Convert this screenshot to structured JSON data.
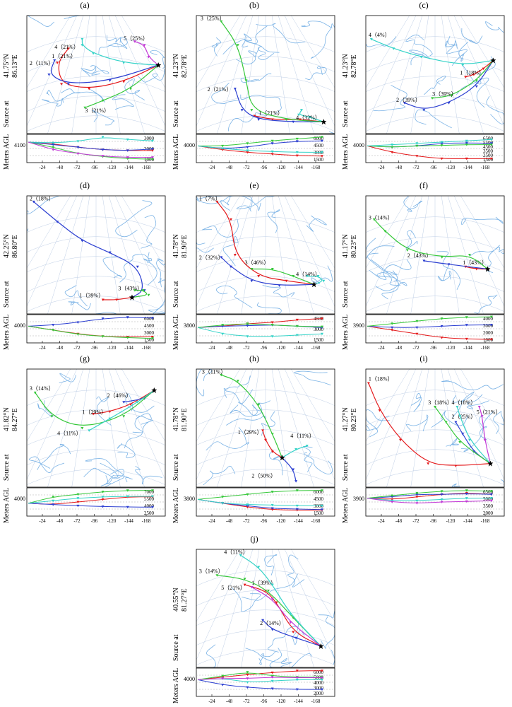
{
  "figure": {
    "side_label_source": "Source at",
    "side_label_agl": "Meters AGL",
    "x_ticks": [
      "-24",
      "-48",
      "-72",
      "-96",
      "-120",
      "-144",
      "-168"
    ],
    "colors": {
      "1": "#e41a1c",
      "2": "#2c3fd1",
      "3": "#36c83a",
      "4": "#35d3c8",
      "5": "#c33ad6",
      "map_line": "#7bb3e6",
      "grid": "#bfcfe6"
    }
  },
  "chart_data": [
    {
      "type": "line",
      "panel": "(a)",
      "lat": "41.75°N",
      "lon": "86.13°E",
      "height_base": "4100",
      "height_ticks": [
        "3000",
        "2000",
        "1000"
      ],
      "clusters": [
        {
          "id": "1",
          "label": "1（21%）",
          "share": 21
        },
        {
          "id": "2",
          "label": "2（11%）",
          "share": 11
        },
        {
          "id": "3",
          "label": "3（21%）",
          "share": 21
        },
        {
          "id": "4",
          "label": "4（21%）",
          "share": 21
        },
        {
          "id": "5",
          "label": "5（25%）",
          "share": 25
        }
      ]
    },
    {
      "type": "line",
      "panel": "(b)",
      "lat": "41.23°N",
      "lon": "82.78°E",
      "height_base": "4000",
      "height_ticks": [
        "6000",
        "4500",
        "3000",
        "1500"
      ],
      "clusters": [
        {
          "id": "1",
          "label": "1（21%）",
          "share": 21
        },
        {
          "id": "2",
          "label": "2（21%）",
          "share": 21
        },
        {
          "id": "3",
          "label": "3（25%）",
          "share": 25
        },
        {
          "id": "4",
          "label": "4（32%）",
          "share": 32
        }
      ]
    },
    {
      "type": "line",
      "panel": "(c)",
      "lat": "41.23°N",
      "lon": "82.78°E",
      "height_base": "4000",
      "height_ticks": [
        "6500",
        "5500",
        "4500",
        "3500",
        "2500",
        "1500"
      ],
      "clusters": [
        {
          "id": "1",
          "label": "1（18%）",
          "share": 18
        },
        {
          "id": "2",
          "label": "2（39%）",
          "share": 39
        },
        {
          "id": "3",
          "label": "3（39%）",
          "share": 39
        },
        {
          "id": "4",
          "label": "4（4%）",
          "share": 4
        }
      ]
    },
    {
      "type": "line",
      "panel": "(d)",
      "lat": "42.25°N",
      "lon": "86.80°E",
      "height_base": "4000",
      "height_ticks": [
        "6000",
        "4500",
        "3000",
        "1500"
      ],
      "clusters": [
        {
          "id": "1",
          "label": "1（39%）",
          "share": 39
        },
        {
          "id": "2",
          "label": "2（18%）",
          "share": 18
        },
        {
          "id": "3",
          "label": "3（43%）",
          "share": 43
        }
      ]
    },
    {
      "type": "line",
      "panel": "(e)",
      "lat": "41.78°N",
      "lon": "81.90°E",
      "height_base": "3800",
      "height_ticks": [
        "4500",
        "3000",
        "1500"
      ],
      "clusters": [
        {
          "id": "1",
          "label": "1（7%）",
          "share": 7
        },
        {
          "id": "2",
          "label": "2（32%）",
          "share": 32
        },
        {
          "id": "3",
          "label": "3（46%）",
          "share": 46
        },
        {
          "id": "4",
          "label": "4（14%）",
          "share": 14
        }
      ]
    },
    {
      "type": "line",
      "panel": "(f)",
      "lat": "41.17°N",
      "lon": "80.23°E",
      "height_base": "3900",
      "height_ticks": [
        "4000",
        "3000",
        "2000",
        "1000"
      ],
      "clusters": [
        {
          "id": "1",
          "label": "1（43%）",
          "share": 43
        },
        {
          "id": "2",
          "label": "2（43%）",
          "share": 43
        },
        {
          "id": "3",
          "label": "3（14%）",
          "share": 14
        }
      ]
    },
    {
      "type": "line",
      "panel": "(g)",
      "lat": "41.82°N",
      "lon": "84.27°E",
      "height_base": "4000",
      "height_ticks": [
        "7000",
        "5500",
        "4000",
        "2500"
      ],
      "clusters": [
        {
          "id": "1",
          "label": "1（29%）",
          "share": 29
        },
        {
          "id": "2",
          "label": "2（46%）",
          "share": 46
        },
        {
          "id": "3",
          "label": "3（14%）",
          "share": 14
        },
        {
          "id": "4",
          "label": "4（11%）",
          "share": 11
        }
      ]
    },
    {
      "type": "line",
      "panel": "(h)",
      "lat": "41.78°N",
      "lon": "81.90°E",
      "height_base": "3800",
      "height_ticks": [
        "6000",
        "4500",
        "3000",
        "1500"
      ],
      "clusters": [
        {
          "id": "1",
          "label": "1（29%）",
          "share": 29
        },
        {
          "id": "2",
          "label": "2（50%）",
          "share": 50
        },
        {
          "id": "3",
          "label": "3（11%）",
          "share": 11
        },
        {
          "id": "4",
          "label": "4（11%）",
          "share": 11
        }
      ]
    },
    {
      "type": "line",
      "panel": "(i)",
      "lat": "41.27°N",
      "lon": "80.23°E",
      "height_base": "3900",
      "height_ticks": [
        "6500",
        "5000",
        "3500",
        "2000"
      ],
      "clusters": [
        {
          "id": "1",
          "label": "1（18%）",
          "share": 18
        },
        {
          "id": "2",
          "label": "2（25%）",
          "share": 25
        },
        {
          "id": "3",
          "label": "3（18%）",
          "share": 18
        },
        {
          "id": "4",
          "label": "4（18%）",
          "share": 18
        },
        {
          "id": "5",
          "label": "5（21%）",
          "share": 21
        }
      ]
    },
    {
      "type": "line",
      "panel": "(j)",
      "lat": "40.55°N",
      "lon": "81.27°E",
      "height_base": "4000",
      "height_ticks": [
        "6000",
        "5000",
        "4000",
        "3000",
        "2000"
      ],
      "clusters": [
        {
          "id": "1",
          "label": "1（39%）",
          "share": 39
        },
        {
          "id": "2",
          "label": "2（14%）",
          "share": 14
        },
        {
          "id": "3",
          "label": "3（14%）",
          "share": 14
        },
        {
          "id": "4",
          "label": "4（11%）",
          "share": 11
        },
        {
          "id": "5",
          "label": "5（21%）",
          "share": 21
        }
      ]
    }
  ]
}
